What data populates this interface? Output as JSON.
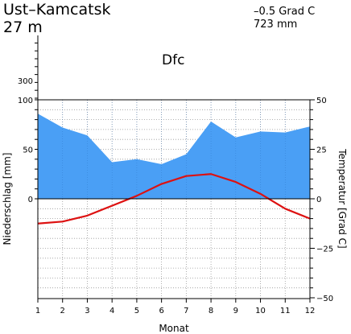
{
  "header": {
    "station": "Ust–Kamcatsk",
    "elevation": "27  m",
    "mean_temp": "–0.5 Grad C",
    "annual_precip": "723 mm",
    "climate_class": "Dfc"
  },
  "chart_data": {
    "type": "line",
    "x": [
      1,
      2,
      3,
      4,
      5,
      6,
      7,
      8,
      9,
      10,
      11,
      12
    ],
    "x_ticks": [
      "1",
      "2",
      "3",
      "4",
      "5",
      "6",
      "7",
      "8",
      "9",
      "10",
      "11",
      "12"
    ],
    "xlabel": "Monat",
    "ylabel_left": "Niederschlag [mm]",
    "ylabel_right": "Temperatur [Grad C]",
    "left_ticks": [
      "0",
      "50",
      "100",
      "300"
    ],
    "right_ticks": [
      "50",
      "25",
      "0",
      "−25",
      "−50"
    ],
    "precip_range": [
      0,
      100
    ],
    "temp_range": [
      -50,
      50
    ],
    "series": [
      {
        "values": [
          86,
          72,
          64,
          37,
          40,
          35,
          45,
          78,
          62,
          68,
          67,
          73
        ],
        "color": "#4a9ff5"
      },
      {
        "values": [
          -12.5,
          -11.5,
          -8.5,
          -3.5,
          1.5,
          7.5,
          11.5,
          12.5,
          8.5,
          2.5,
          -5,
          -10
        ],
        "color": "#dd1111"
      }
    ]
  }
}
